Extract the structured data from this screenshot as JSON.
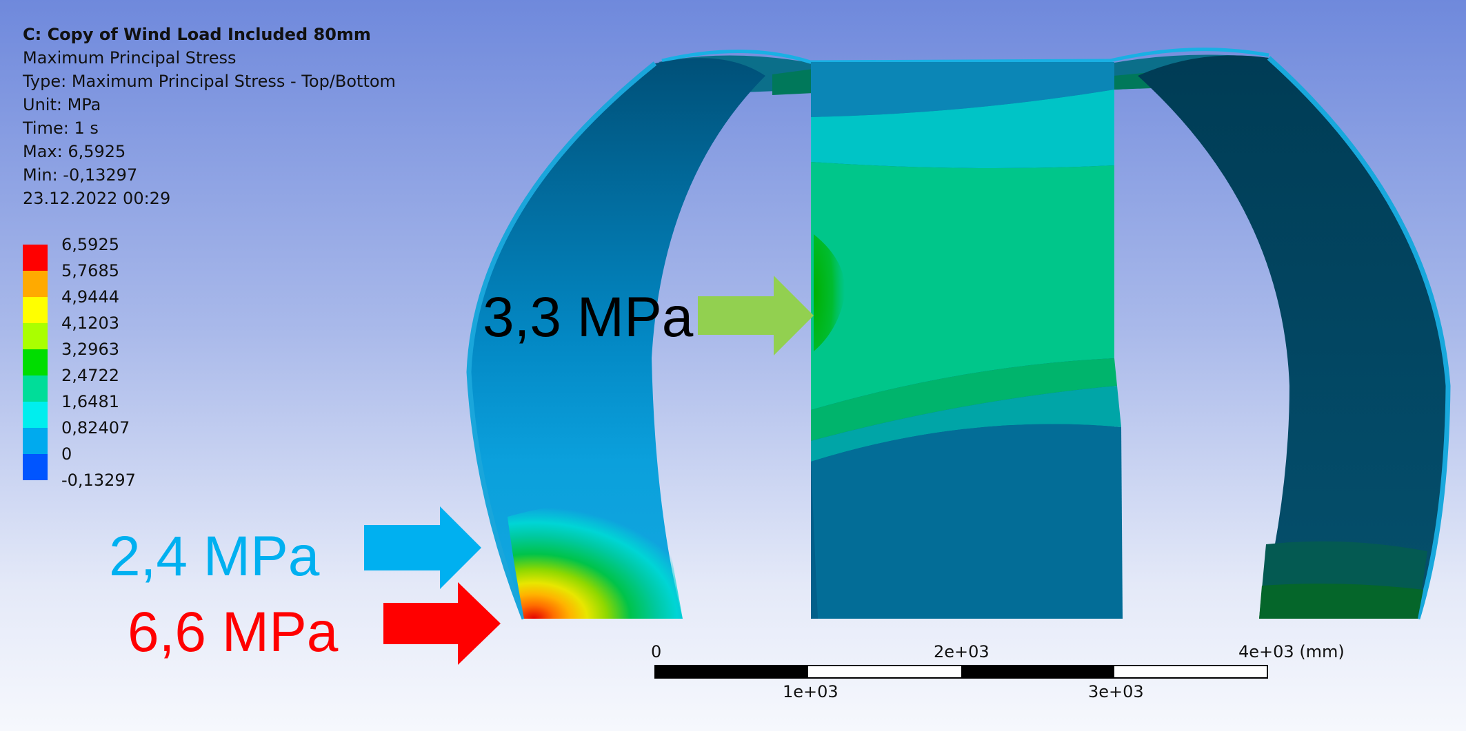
{
  "info": {
    "title": "C: Copy of Wind Load Included 80mm",
    "result_name": "Maximum Principal Stress",
    "type": "Type: Maximum Principal Stress - Top/Bottom",
    "unit": "Unit: MPa",
    "time": "Time: 1 s",
    "max": "Max: 6,5925",
    "min": "Min: -0,13297",
    "date": "23.12.2022 00:29"
  },
  "legend": [
    {
      "label": "6,5925",
      "color": "#ff0000"
    },
    {
      "label": "5,7685",
      "color": "#ffaa00"
    },
    {
      "label": "4,9444",
      "color": "#ffff00"
    },
    {
      "label": "4,1203",
      "color": "#aaff00"
    },
    {
      "label": "3,2963",
      "color": "#00dd00"
    },
    {
      "label": "2,4722",
      "color": "#00dd99"
    },
    {
      "label": "1,6481",
      "color": "#00eeee"
    },
    {
      "label": "0,82407",
      "color": "#00aaee"
    },
    {
      "label": "0",
      "color": "#0055ff"
    },
    {
      "label": "-0,13297",
      "color": ""
    }
  ],
  "callouts": [
    {
      "text": "3,3 MPa",
      "color": "#000000",
      "arrow_color": "#92d050"
    },
    {
      "text": "2,4 MPa",
      "color": "#00b0f0",
      "arrow_color": "#00b0f0"
    },
    {
      "text": "6,6 MPa",
      "color": "#ff0000",
      "arrow_color": "#ff0000"
    }
  ],
  "scale_bar": {
    "ticks_top": [
      "0",
      "2e+03",
      "4e+03 (mm)"
    ],
    "ticks_bottom": [
      "1e+03",
      "3e+03"
    ]
  }
}
